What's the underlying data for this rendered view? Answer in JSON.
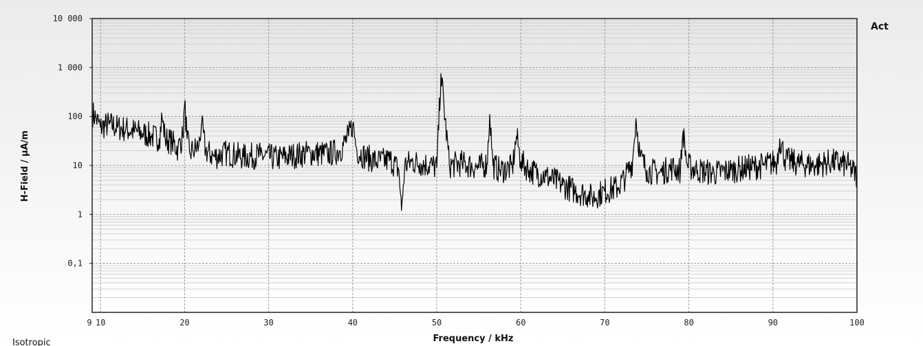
{
  "chart_data": {
    "type": "line",
    "title": "",
    "xlabel": "Frequency / kHz",
    "ylabel": "H-Field / µA/m",
    "x_scale": "linear",
    "y_scale": "log",
    "xlim": [
      9,
      100
    ],
    "ylim": [
      0.01,
      10000
    ],
    "x_ticks": [
      10,
      20,
      30,
      40,
      50,
      60,
      70,
      80,
      90,
      100
    ],
    "x_tick_labels": [
      "10",
      "20",
      "30",
      "40",
      "50",
      "60",
      "70",
      "80",
      "90",
      "100"
    ],
    "y_ticks": [
      0.1,
      1,
      10,
      100,
      1000,
      10000
    ],
    "y_tick_labels": [
      "0,1",
      "1",
      "10",
      "100",
      "1 000",
      "10 000"
    ],
    "grid": true,
    "legend": {
      "position": "top-right",
      "entries": [
        "Act"
      ]
    },
    "mode_label": "Isotropic",
    "series": [
      {
        "name": "Act",
        "color": "#000000",
        "x": [
          9,
          9.5,
          10,
          11,
          12,
          13,
          14,
          15,
          16,
          17,
          17.3,
          17.7,
          18.5,
          19.2,
          19.8,
          20,
          20.3,
          20.6,
          21,
          21.7,
          22,
          22.5,
          23.5,
          25,
          27,
          29,
          31,
          33,
          35,
          37,
          38.5,
          39.5,
          40,
          40.5,
          41.5,
          43,
          44.5,
          45.5,
          45.8,
          46.2,
          47,
          48,
          49.5,
          50,
          50.5,
          51.5,
          53,
          55,
          56,
          56.3,
          56.7,
          57.5,
          59,
          59.5,
          60,
          61,
          63,
          65,
          66.5,
          68,
          68.5,
          70,
          71.5,
          72.5,
          73.3,
          73.7,
          74.2,
          75,
          76.5,
          78,
          79,
          79.3,
          79.8,
          81,
          83,
          85,
          87,
          89,
          90.5,
          90.8,
          91.5,
          93,
          95,
          97,
          99,
          100
        ],
        "y": [
          120,
          90,
          60,
          70,
          60,
          55,
          50,
          45,
          40,
          35,
          100,
          35,
          30,
          22,
          40,
          180,
          35,
          18,
          20,
          25,
          70,
          20,
          15,
          18,
          15,
          16,
          14,
          16,
          18,
          17,
          20,
          40,
          70,
          20,
          15,
          12,
          13,
          8,
          1.2,
          10,
          12,
          11,
          10,
          9,
          750,
          10,
          11,
          9,
          11,
          110,
          10,
          8,
          9,
          40,
          12,
          8,
          6,
          4,
          3,
          2.5,
          2.2,
          3,
          3.5,
          6,
          12,
          90,
          15,
          8,
          7,
          9,
          8,
          50,
          10,
          8,
          7,
          8,
          9,
          10,
          12,
          35,
          13,
          11,
          10,
          12,
          10,
          6
        ]
      }
    ]
  }
}
